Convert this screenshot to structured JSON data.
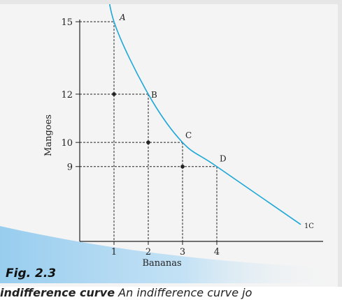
{
  "figure": {
    "caption": "Fig. 2.3",
    "bottom_text_bold": "indifference curve",
    "bottom_text_rest": "  An indifference curve jo"
  },
  "colors": {
    "curve": "#1ea7d8",
    "axis": "#222222",
    "banner": "#b9dcf3"
  },
  "chart_data": {
    "type": "line",
    "xlabel": "Bananas",
    "ylabel": "Mangoes",
    "x_ticks": [
      1,
      2,
      3,
      4
    ],
    "y_ticks": [
      9,
      10,
      12,
      15
    ],
    "xlim": [
      0,
      6.9
    ],
    "ylim": [
      5.9,
      18
    ],
    "grid": false,
    "points": [
      {
        "label": "A",
        "x": 1,
        "y": 15
      },
      {
        "label": "B",
        "x": 2,
        "y": 12
      },
      {
        "label": "C",
        "x": 3,
        "y": 10
      },
      {
        "label": "D",
        "x": 4,
        "y": 9
      }
    ],
    "dot_points": [
      {
        "x": 1,
        "y": 12
      },
      {
        "x": 2,
        "y": 10
      },
      {
        "x": 3,
        "y": 9
      }
    ],
    "curve_label": "1C"
  }
}
